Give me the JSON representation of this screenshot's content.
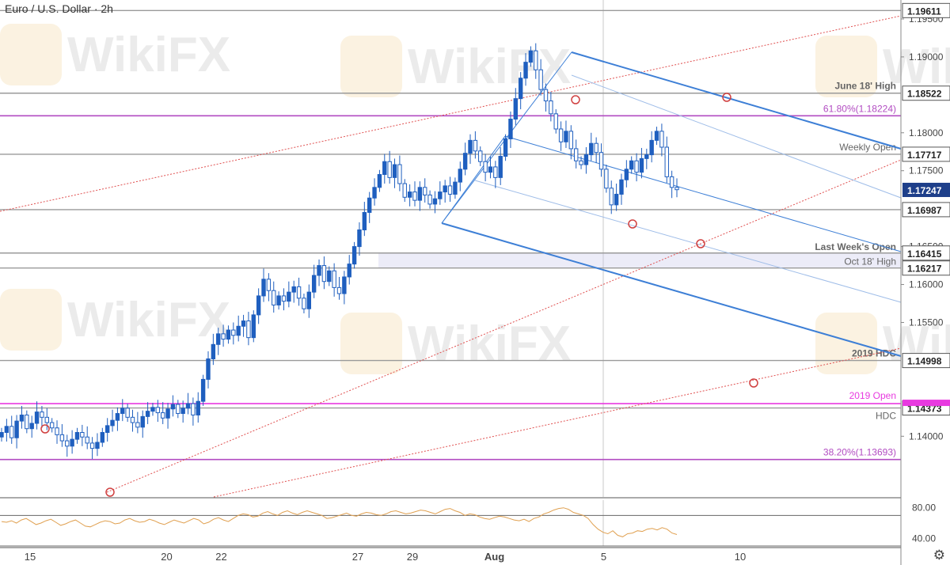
{
  "title": "Euro / U.S. Dollar · 2h",
  "watermark": "WikiFX",
  "icons": {
    "settings": "gear-icon"
  },
  "colors": {
    "up": "#1f5fbf",
    "down": "#1f5fbf",
    "channel": "#3d7fd6",
    "trend": "#e05050",
    "fib": "#b24cc2",
    "level": "#9a9a9a",
    "rsi": "#e0a050",
    "price_badge": "#1e3f8a",
    "open_badge": "#e83ae0"
  },
  "chart_data": {
    "type": "candlestick",
    "symbol": "Euro / U.S. Dollar",
    "timeframe": "2h",
    "ylim": [
      1.132,
      1.1975
    ],
    "x_tick_labels": [
      {
        "label": "15",
        "day": 0
      },
      {
        "label": "20",
        "day": 5
      },
      {
        "label": "22",
        "day": 7
      },
      {
        "label": "27",
        "day": 12
      },
      {
        "label": "29",
        "day": 14
      },
      {
        "label": "Aug",
        "day": 17
      },
      {
        "label": "5",
        "day": 21
      },
      {
        "label": "10",
        "day": 26
      }
    ],
    "y_tick_labels": [
      "1.19500",
      "1.19000",
      "1.18000",
      "1.17500",
      "1.16500",
      "1.16000",
      "1.15500",
      "1.14000"
    ],
    "price_levels": [
      {
        "value": 1.19611,
        "label": "",
        "tag": "1.19611",
        "style": "level"
      },
      {
        "value": 1.18522,
        "label": "June 18' High",
        "tag": "1.18522",
        "style": "level"
      },
      {
        "value": 1.18224,
        "label": "61.80%(1.18224)",
        "tag": "",
        "style": "fib"
      },
      {
        "value": 1.17717,
        "label": "Weekly Open",
        "tag": "1.17717",
        "style": "level"
      },
      {
        "value": 1.16987,
        "label": "",
        "tag": "1.16987",
        "style": "level"
      },
      {
        "value": 1.16415,
        "label": "Last Week's Open",
        "tag": "1.16415",
        "style": "level"
      },
      {
        "value": 1.16217,
        "label": "Oct 18' High",
        "tag": "1.16217",
        "style": "level"
      },
      {
        "value": 1.14998,
        "label": "2019 HDC",
        "tag": "1.14998",
        "style": "level"
      },
      {
        "value": 1.1443,
        "label": "2019 Open",
        "tag": "",
        "style": "open"
      },
      {
        "value": 1.14373,
        "label": "HDC",
        "tag": "1.14373",
        "style": "level"
      },
      {
        "value": 1.13693,
        "label": "38.20%(1.13693)",
        "tag": "",
        "style": "fib"
      }
    ],
    "current_price": "1.17247",
    "rsi": {
      "ylim": [
        30,
        90
      ],
      "levels": [
        70,
        30
      ],
      "y_tick_labels": [
        "80.00",
        "40.00"
      ],
      "values": [
        62,
        61,
        63,
        60,
        64,
        66,
        62,
        58,
        60,
        63,
        65,
        61,
        57,
        59,
        62,
        64,
        60,
        56,
        55,
        58,
        61,
        63,
        62,
        59,
        60,
        64,
        66,
        63,
        61,
        62,
        65,
        63,
        60,
        58,
        61,
        64,
        62,
        60,
        63,
        66,
        64,
        59,
        61,
        65,
        67,
        64,
        62,
        66,
        70,
        72,
        71,
        68,
        69,
        73,
        75,
        72,
        70,
        74,
        76,
        73,
        71,
        74,
        76,
        74,
        72,
        70,
        66,
        67,
        69,
        71,
        73,
        70,
        69,
        72,
        74,
        73,
        71,
        70,
        72,
        75,
        76,
        74,
        72,
        73,
        75,
        77,
        76,
        74,
        72,
        75,
        78,
        79,
        76,
        74,
        70,
        72,
        71,
        68,
        66,
        65,
        67,
        69,
        68,
        66,
        64,
        63,
        65,
        62,
        66,
        68,
        72,
        74,
        77,
        79,
        80,
        78,
        74,
        72,
        70,
        66,
        58,
        52,
        48,
        46,
        50,
        44,
        42,
        46,
        47,
        50,
        49,
        52,
        53,
        51,
        54,
        52,
        47,
        45
      ]
    },
    "series": [
      {
        "name": "EUR/USD",
        "values": [
          1.1405,
          1.1413,
          1.1398,
          1.142,
          1.1428,
          1.141,
          1.1417,
          1.1432,
          1.1425,
          1.1418,
          1.1411,
          1.1402,
          1.1394,
          1.1387,
          1.1396,
          1.1405,
          1.1399,
          1.1391,
          1.1384,
          1.1392,
          1.1405,
          1.1414,
          1.1421,
          1.143,
          1.1437,
          1.1425,
          1.1418,
          1.1412,
          1.1426,
          1.1433,
          1.1438,
          1.1431,
          1.1424,
          1.1436,
          1.1442,
          1.143,
          1.1437,
          1.1443,
          1.1428,
          1.1446,
          1.1475,
          1.1502,
          1.1521,
          1.1535,
          1.1528,
          1.154,
          1.1533,
          1.1545,
          1.1552,
          1.153,
          1.156,
          1.1585,
          1.1607,
          1.1592,
          1.1573,
          1.1585,
          1.1578,
          1.159,
          1.1597,
          1.1582,
          1.1568,
          1.159,
          1.1612,
          1.1625,
          1.1604,
          1.1618,
          1.1596,
          1.1588,
          1.161,
          1.1627,
          1.165,
          1.1672,
          1.1695,
          1.1714,
          1.1728,
          1.1745,
          1.1762,
          1.1741,
          1.1758,
          1.1733,
          1.1715,
          1.1722,
          1.1711,
          1.1728,
          1.1718,
          1.1706,
          1.1713,
          1.1722,
          1.173,
          1.1719,
          1.1735,
          1.1752,
          1.1773,
          1.179,
          1.1776,
          1.1762,
          1.1748,
          1.1755,
          1.1741,
          1.1769,
          1.1792,
          1.1818,
          1.1845,
          1.1872,
          1.1893,
          1.1908,
          1.1883,
          1.1857,
          1.1842,
          1.1825,
          1.1805,
          1.1788,
          1.1802,
          1.1779,
          1.1763,
          1.1758,
          1.1771,
          1.1786,
          1.1774,
          1.1752,
          1.1727,
          1.1705,
          1.1719,
          1.1738,
          1.1752,
          1.1763,
          1.1748,
          1.1766,
          1.1771,
          1.179,
          1.1802,
          1.1781,
          1.1742,
          1.1728,
          1.1725
        ]
      }
    ]
  }
}
